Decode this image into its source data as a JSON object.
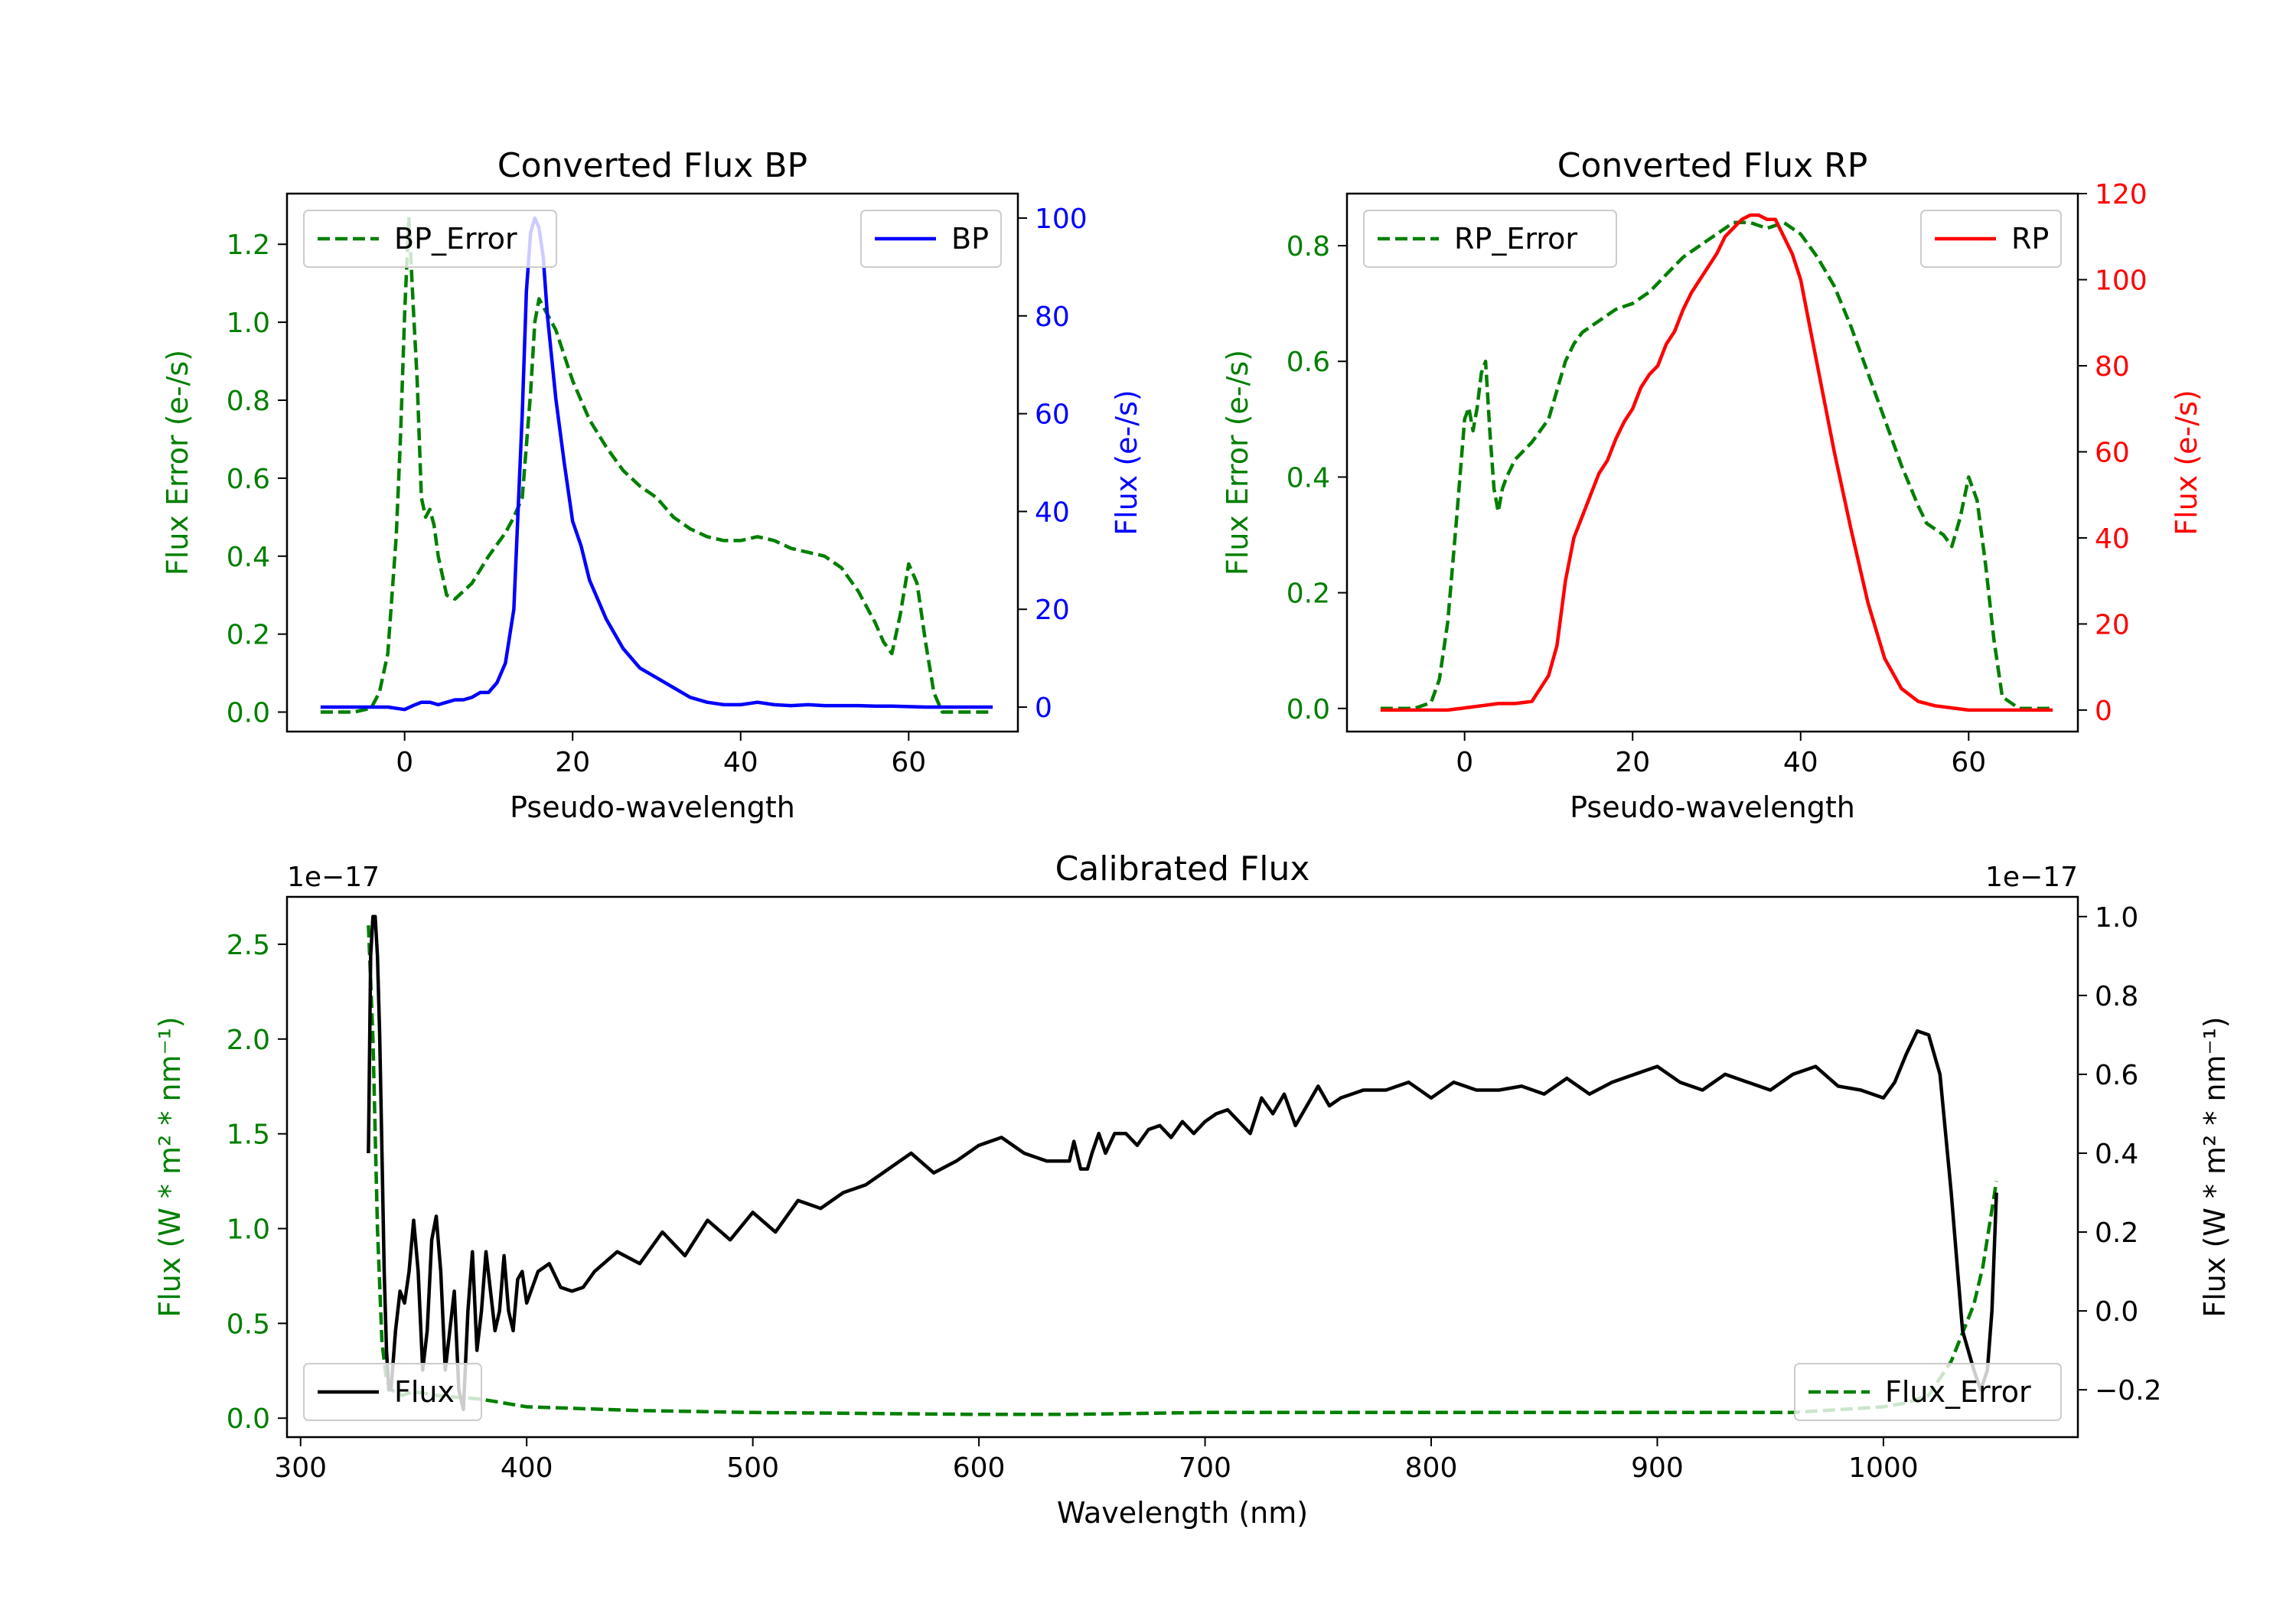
{
  "colors": {
    "error": "#007f00",
    "bp": "#0000ff",
    "rp": "#ff0000",
    "flux": "#000000"
  },
  "chart_data": [
    {
      "id": "bp",
      "type": "line",
      "title": "Converted Flux BP",
      "xlabel": "Pseudo-wavelength",
      "ylabel_left": "Flux Error (e-/s)",
      "ylabel_right": "Flux (e-/s)",
      "xlim": [
        -14,
        73
      ],
      "ylim_left": [
        -0.05,
        1.33
      ],
      "ylim_right": [
        -5,
        105
      ],
      "xticks": [
        0,
        20,
        40,
        60
      ],
      "yticks_left": [
        0.0,
        0.2,
        0.4,
        0.6,
        0.8,
        1.0,
        1.2
      ],
      "yticks_right": [
        0,
        20,
        40,
        60,
        80,
        100
      ],
      "legend_left": "BP_Error",
      "legend_right": "BP",
      "series_error": {
        "name": "BP_Error",
        "x": [
          -10,
          -6,
          -4,
          -3,
          -2,
          -1,
          -0.5,
          0,
          0.5,
          1,
          1.5,
          2,
          2.5,
          3,
          3.5,
          4,
          5,
          6,
          8,
          10,
          12,
          13,
          14,
          15,
          15.5,
          16,
          17,
          18,
          20,
          22,
          24,
          26,
          28,
          30,
          32,
          34,
          36,
          38,
          40,
          42,
          44,
          46,
          48,
          50,
          52,
          54,
          56,
          57,
          58,
          59,
          60,
          61,
          62,
          63,
          64,
          66,
          70
        ],
        "y": [
          0.0,
          0.0,
          0.01,
          0.05,
          0.15,
          0.45,
          0.7,
          1.02,
          1.27,
          1.05,
          0.85,
          0.55,
          0.5,
          0.52,
          0.48,
          0.4,
          0.3,
          0.29,
          0.33,
          0.4,
          0.46,
          0.5,
          0.55,
          0.82,
          1.0,
          1.06,
          1.02,
          0.98,
          0.85,
          0.75,
          0.68,
          0.62,
          0.58,
          0.55,
          0.5,
          0.47,
          0.45,
          0.44,
          0.44,
          0.45,
          0.44,
          0.42,
          0.41,
          0.4,
          0.37,
          0.31,
          0.23,
          0.18,
          0.15,
          0.25,
          0.38,
          0.33,
          0.18,
          0.05,
          0.0,
          0.0,
          0.0
        ]
      },
      "series_flux": {
        "name": "BP",
        "x": [
          -10,
          -6,
          -2,
          0,
          1,
          2,
          3,
          4,
          5,
          6,
          7,
          8,
          9,
          10,
          11,
          12,
          13,
          14,
          14.5,
          15,
          15.5,
          16,
          16.5,
          17,
          18,
          19,
          20,
          21,
          22,
          24,
          26,
          28,
          30,
          32,
          34,
          36,
          38,
          40,
          42,
          44,
          46,
          48,
          50,
          52,
          54,
          56,
          58,
          60,
          62,
          64,
          66,
          70
        ],
        "y": [
          0,
          0,
          0,
          -0.5,
          0.3,
          1,
          1,
          0.5,
          1,
          1.5,
          1.5,
          2,
          3,
          3,
          5,
          9,
          20,
          60,
          85,
          97,
          100,
          98,
          92,
          80,
          63,
          50,
          38,
          33,
          26,
          18,
          12,
          8,
          6,
          4,
          2,
          1,
          0.5,
          0.5,
          1,
          0.5,
          0.3,
          0.5,
          0.3,
          0.3,
          0.3,
          0.2,
          0.2,
          0.1,
          0,
          0,
          0,
          0
        ]
      }
    },
    {
      "id": "rp",
      "type": "line",
      "title": "Converted Flux RP",
      "xlabel": "Pseudo-wavelength",
      "ylabel_left": "Flux Error (e-/s)",
      "ylabel_right": "Flux (e-/s)",
      "xlim": [
        -14,
        73
      ],
      "ylim_left": [
        -0.04,
        0.89
      ],
      "ylim_right": [
        -5,
        120
      ],
      "xticks": [
        0,
        20,
        40,
        60
      ],
      "yticks_left": [
        0.0,
        0.2,
        0.4,
        0.6,
        0.8
      ],
      "yticks_right": [
        0,
        20,
        40,
        60,
        80,
        100,
        120
      ],
      "legend_left": "RP_Error",
      "legend_right": "RP",
      "series_error": {
        "name": "RP_Error",
        "x": [
          -10,
          -6,
          -4,
          -3,
          -2,
          -1,
          0,
          0.5,
          1,
          1.5,
          2,
          2.5,
          3,
          3.5,
          4,
          4.5,
          5,
          6,
          8,
          10,
          11,
          12,
          13,
          14,
          16,
          18,
          20,
          22,
          24,
          26,
          28,
          30,
          32,
          34,
          36,
          38,
          40,
          42,
          44,
          46,
          48,
          50,
          52,
          54,
          55,
          56,
          57,
          58,
          59,
          60,
          61,
          62,
          63,
          64,
          66,
          70
        ],
        "y": [
          0.0,
          0.0,
          0.01,
          0.05,
          0.15,
          0.32,
          0.5,
          0.52,
          0.48,
          0.52,
          0.58,
          0.6,
          0.48,
          0.38,
          0.34,
          0.38,
          0.4,
          0.43,
          0.46,
          0.5,
          0.55,
          0.6,
          0.63,
          0.65,
          0.67,
          0.69,
          0.7,
          0.72,
          0.75,
          0.78,
          0.8,
          0.82,
          0.84,
          0.84,
          0.83,
          0.84,
          0.82,
          0.78,
          0.73,
          0.66,
          0.58,
          0.5,
          0.42,
          0.35,
          0.32,
          0.31,
          0.3,
          0.28,
          0.33,
          0.4,
          0.36,
          0.25,
          0.12,
          0.02,
          0.0,
          0.0
        ]
      },
      "series_flux": {
        "name": "RP",
        "x": [
          -10,
          -6,
          -2,
          0,
          2,
          4,
          6,
          8,
          9,
          10,
          11,
          12,
          13,
          14,
          15,
          16,
          17,
          18,
          19,
          20,
          21,
          22,
          23,
          24,
          25,
          26,
          27,
          28,
          29,
          30,
          31,
          32,
          33,
          34,
          35,
          36,
          37,
          38,
          39,
          40,
          41,
          42,
          44,
          46,
          48,
          50,
          52,
          54,
          56,
          58,
          60,
          62,
          64,
          66,
          70
        ],
        "y": [
          0,
          0,
          0,
          0.5,
          1,
          1.5,
          1.5,
          2,
          5,
          8,
          15,
          30,
          40,
          45,
          50,
          55,
          58,
          63,
          67,
          70,
          75,
          78,
          80,
          85,
          88,
          93,
          97,
          100,
          103,
          106,
          110,
          112,
          114,
          115,
          115,
          114,
          114,
          110,
          106,
          100,
          90,
          80,
          60,
          42,
          25,
          12,
          5,
          2,
          1,
          0.5,
          0,
          0,
          0,
          0,
          0
        ]
      }
    },
    {
      "id": "cal",
      "type": "line",
      "title": "Calibrated Flux",
      "xlabel": "Wavelength (nm)",
      "ylabel_left": "Flux (W * m² * nm⁻¹)",
      "ylabel_right": "Flux (W * m² * nm⁻¹)",
      "offset_left": "1e−17",
      "offset_right": "1e−17",
      "xlim": [
        294,
        1086
      ],
      "ylim_left": [
        -0.1,
        2.75
      ],
      "ylim_right": [
        -0.32,
        1.05
      ],
      "xticks": [
        300,
        400,
        500,
        600,
        700,
        800,
        900,
        1000
      ],
      "yticks_left": [
        0.0,
        0.5,
        1.0,
        1.5,
        2.0,
        2.5
      ],
      "yticks_left_labels": [
        "0.0",
        "0.5",
        "1.0",
        "1.5",
        "2.0",
        "2.5"
      ],
      "yticks_right": [
        -0.2,
        0.0,
        0.2,
        0.4,
        0.6,
        0.8,
        1.0
      ],
      "yticks_right_labels": [
        "−0.2",
        "0.0",
        "0.2",
        "0.4",
        "0.6",
        "0.8",
        "1.0"
      ],
      "legend_left": "Flux",
      "legend_right": "Flux_Error",
      "series_error": {
        "name": "Flux_Error",
        "x": [
          330,
          332,
          334,
          336,
          338,
          340,
          345,
          350,
          360,
          380,
          400,
          450,
          500,
          600,
          640,
          700,
          800,
          900,
          960,
          1000,
          1010,
          1020,
          1030,
          1035,
          1040,
          1044,
          1048,
          1050
        ],
        "y": [
          2.6,
          2.0,
          1.0,
          0.4,
          0.2,
          0.15,
          0.12,
          0.14,
          0.12,
          0.1,
          0.06,
          0.04,
          0.03,
          0.02,
          0.02,
          0.03,
          0.03,
          0.03,
          0.03,
          0.06,
          0.08,
          0.12,
          0.3,
          0.45,
          0.6,
          0.8,
          1.1,
          1.25
        ]
      },
      "series_flux": {
        "name": "Flux",
        "x": [
          330,
          331,
          332,
          333,
          334,
          335,
          336,
          337,
          338,
          339,
          340,
          342,
          344,
          346,
          348,
          350,
          352,
          354,
          356,
          358,
          360,
          362,
          364,
          366,
          368,
          370,
          372,
          374,
          376,
          378,
          380,
          382,
          384,
          386,
          388,
          390,
          392,
          394,
          396,
          398,
          400,
          405,
          410,
          415,
          420,
          425,
          430,
          440,
          450,
          460,
          470,
          480,
          490,
          500,
          510,
          520,
          530,
          540,
          550,
          560,
          570,
          580,
          590,
          600,
          610,
          620,
          630,
          640,
          642,
          645,
          648,
          650,
          653,
          656,
          660,
          665,
          670,
          675,
          680,
          685,
          690,
          695,
          700,
          705,
          710,
          720,
          725,
          730,
          735,
          740,
          745,
          750,
          755,
          760,
          770,
          780,
          790,
          800,
          810,
          820,
          830,
          840,
          850,
          860,
          870,
          880,
          890,
          900,
          910,
          920,
          930,
          940,
          950,
          960,
          970,
          980,
          990,
          1000,
          1005,
          1010,
          1015,
          1020,
          1025,
          1030,
          1035,
          1040,
          1043,
          1046,
          1048,
          1050
        ],
        "y": [
          0.4,
          0.9,
          1.0,
          1.0,
          0.9,
          0.7,
          0.4,
          0.1,
          -0.1,
          -0.2,
          -0.2,
          -0.05,
          0.05,
          0.02,
          0.1,
          0.23,
          0.1,
          -0.15,
          -0.05,
          0.18,
          0.24,
          0.1,
          -0.15,
          -0.05,
          0.05,
          -0.2,
          -0.25,
          0.0,
          0.15,
          -0.1,
          0.0,
          0.15,
          0.05,
          -0.05,
          0.0,
          0.14,
          0.0,
          -0.05,
          0.08,
          0.1,
          0.02,
          0.1,
          0.12,
          0.06,
          0.05,
          0.06,
          0.1,
          0.15,
          0.12,
          0.2,
          0.14,
          0.23,
          0.18,
          0.25,
          0.2,
          0.28,
          0.26,
          0.3,
          0.32,
          0.36,
          0.4,
          0.35,
          0.38,
          0.42,
          0.44,
          0.4,
          0.38,
          0.38,
          0.43,
          0.36,
          0.36,
          0.4,
          0.45,
          0.4,
          0.45,
          0.45,
          0.42,
          0.46,
          0.47,
          0.44,
          0.48,
          0.45,
          0.48,
          0.5,
          0.51,
          0.45,
          0.54,
          0.5,
          0.55,
          0.47,
          0.52,
          0.57,
          0.52,
          0.54,
          0.56,
          0.56,
          0.58,
          0.54,
          0.58,
          0.56,
          0.56,
          0.57,
          0.55,
          0.59,
          0.55,
          0.58,
          0.6,
          0.62,
          0.58,
          0.56,
          0.6,
          0.58,
          0.56,
          0.6,
          0.62,
          0.57,
          0.56,
          0.54,
          0.58,
          0.65,
          0.71,
          0.7,
          0.6,
          0.3,
          -0.05,
          -0.15,
          -0.2,
          -0.15,
          0.0,
          0.3
        ]
      }
    }
  ]
}
